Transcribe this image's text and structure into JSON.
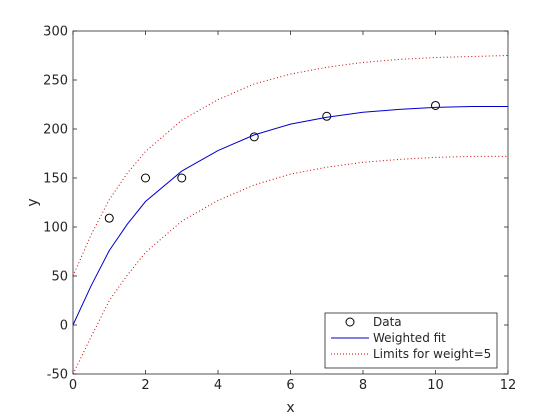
{
  "chart_data": {
    "type": "scatter",
    "title": "",
    "xlabel": "x",
    "ylabel": "y",
    "xlim": [
      0,
      12
    ],
    "ylim": [
      -50,
      300
    ],
    "xticks": [
      0,
      2,
      4,
      6,
      8,
      10,
      12
    ],
    "yticks": [
      -50,
      0,
      50,
      100,
      150,
      200,
      250,
      300
    ],
    "grid": false,
    "legend_position": "bottom-right",
    "series": [
      {
        "name": "Data",
        "kind": "markers",
        "marker": "circle",
        "color": "#000000",
        "x": [
          1,
          2,
          3,
          5,
          7,
          10
        ],
        "y": [
          109,
          150,
          150,
          192,
          213,
          224
        ]
      },
      {
        "name": "Weighted fit",
        "kind": "line",
        "style": "solid",
        "color": "#0000cc",
        "x": [
          0,
          0.5,
          1,
          1.5,
          2,
          3,
          4,
          5,
          6,
          7,
          8,
          9,
          10,
          11,
          12
        ],
        "y": [
          0,
          40,
          76,
          103,
          126,
          157,
          178,
          194,
          205,
          212,
          217,
          220,
          222,
          223,
          223
        ]
      },
      {
        "name": "Limits for weight=5",
        "kind": "line",
        "style": "dotted",
        "color": "#cc0000",
        "x": [
          0,
          0.5,
          1,
          1.5,
          2,
          3,
          4,
          5,
          6,
          7,
          8,
          9,
          10,
          11,
          12
        ],
        "y": [
          50,
          92,
          128,
          155,
          177,
          209,
          230,
          246,
          256,
          263,
          268,
          271,
          273,
          274,
          275
        ]
      },
      {
        "name": "",
        "kind": "line",
        "style": "dotted",
        "color": "#cc0000",
        "x": [
          0,
          0.5,
          1,
          1.5,
          2,
          3,
          4,
          5,
          6,
          7,
          8,
          9,
          10,
          11,
          12
        ],
        "y": [
          -50,
          -12,
          25,
          51,
          74,
          106,
          127,
          143,
          154,
          161,
          166,
          169,
          171,
          172,
          172
        ]
      }
    ]
  }
}
